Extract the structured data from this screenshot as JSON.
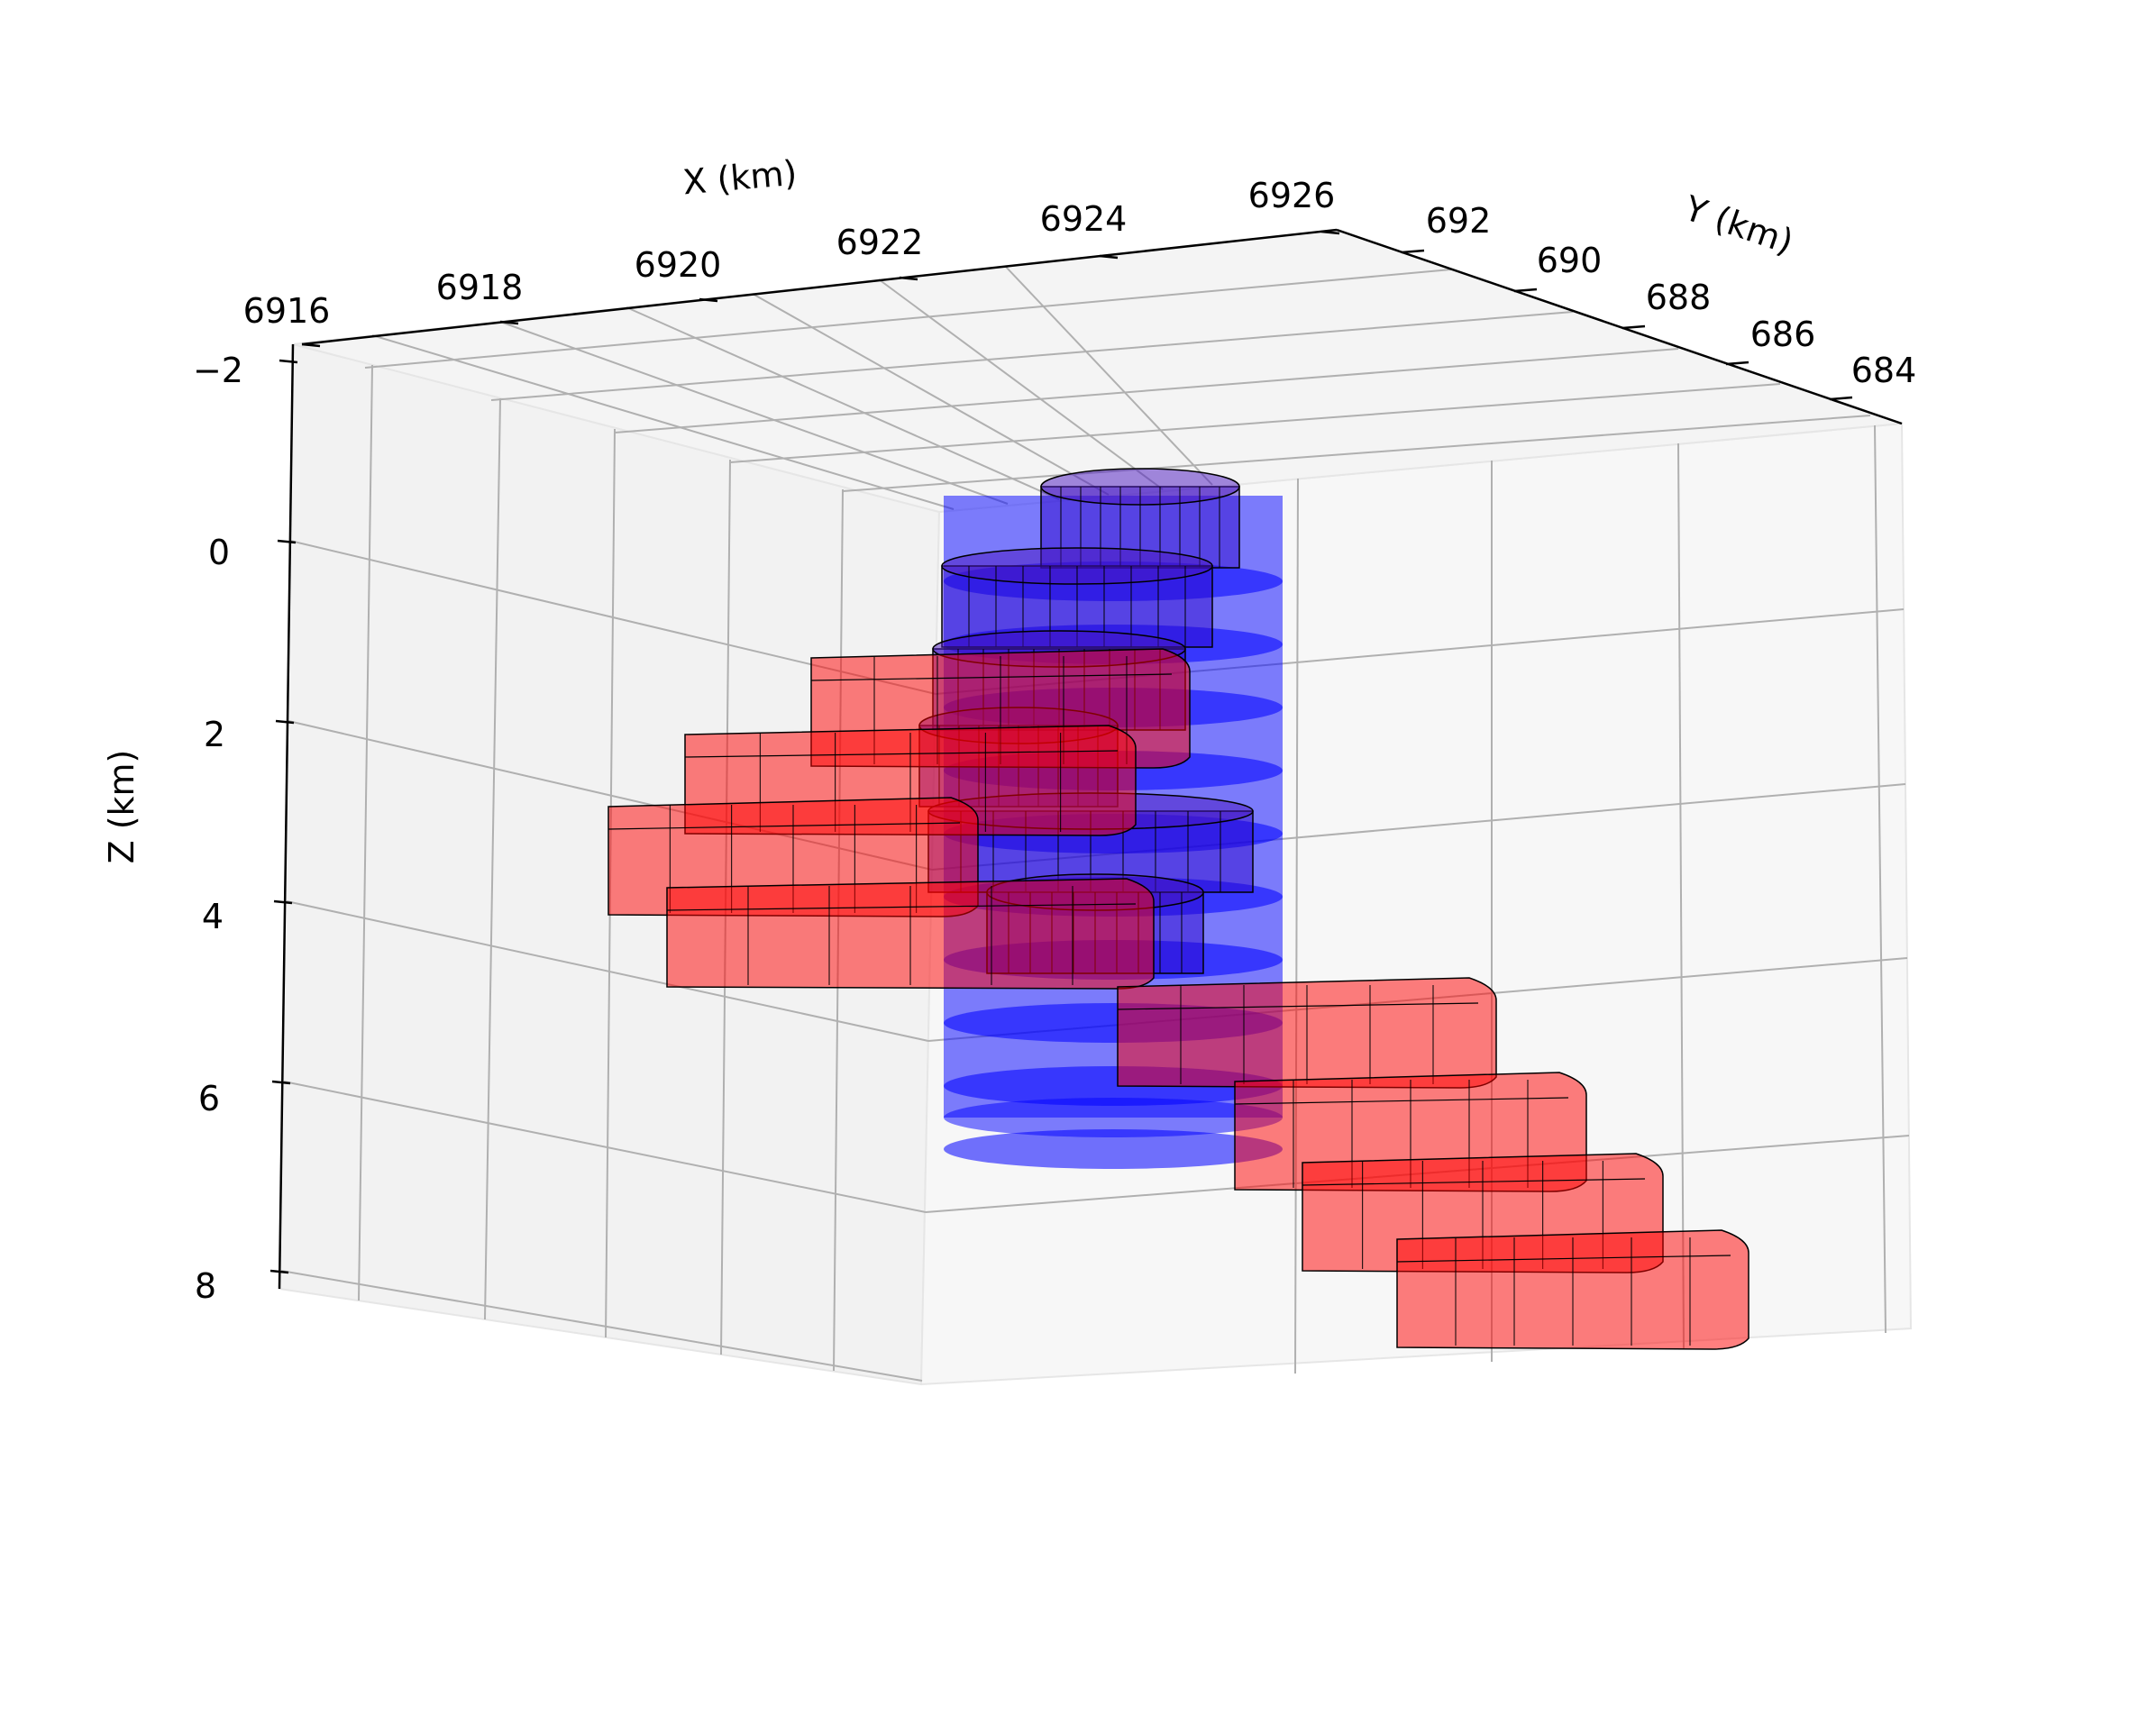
{
  "chart_data": {
    "type": "3d-volume",
    "title": "",
    "axes": {
      "x": {
        "label": "X (km)",
        "ticks": [
          "6916",
          "6918",
          "6920",
          "6922",
          "6924",
          "6926"
        ]
      },
      "y": {
        "label": "Y (km)",
        "ticks": [
          "692",
          "690",
          "688",
          "686",
          "684"
        ]
      },
      "z": {
        "label": "Z (km)",
        "ticks": [
          "−2",
          "0",
          "2",
          "4",
          "6",
          "8"
        ],
        "inverted": true
      }
    },
    "series": [
      {
        "color": "#0000ff",
        "shape": "stacked cylinders",
        "slices": [
          {
            "z_top": 0.0,
            "z_bottom": 8.0
          }
        ]
      },
      {
        "color": "#ff0000",
        "shape": "helical sector slabs",
        "slices": [
          {
            "z_top": 1.2,
            "z_bottom": 2.3
          },
          {
            "z_top": 2.1,
            "z_bottom": 3.1
          },
          {
            "z_top": 2.9,
            "z_bottom": 4.0
          },
          {
            "z_top": 3.8,
            "z_bottom": 4.8
          },
          {
            "z_top": 4.7,
            "z_bottom": 5.7
          },
          {
            "z_top": 5.6,
            "z_bottom": 6.7
          },
          {
            "z_top": 6.5,
            "z_bottom": 7.6
          },
          {
            "z_top": 7.4,
            "z_bottom": 8.5
          }
        ]
      }
    ],
    "grid": true
  }
}
